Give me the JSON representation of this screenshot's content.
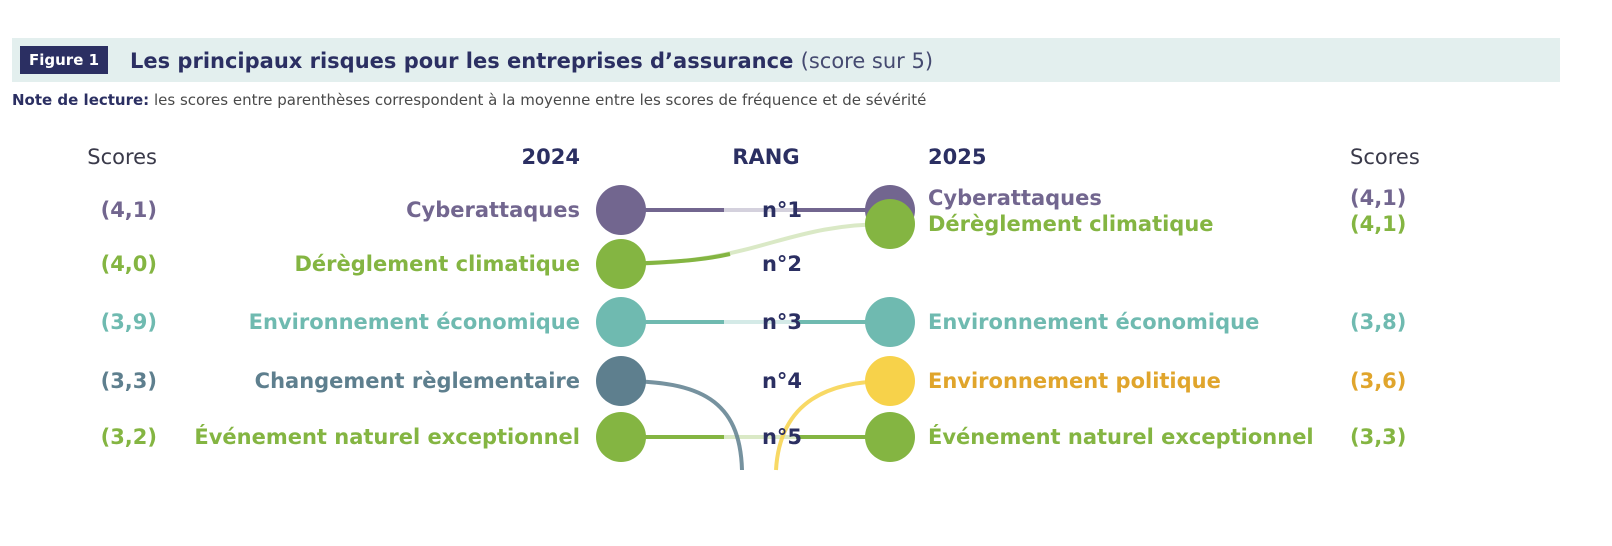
{
  "figure": {
    "badge": "Figure 1",
    "title": "Les principaux risques pour les entreprises d’assurance",
    "subtitle": "(score sur 5)"
  },
  "note": {
    "label": "Note de lecture:",
    "text": "les scores entre parenthèses correspondent à la moyenne entre les scores de fréquence et de sévérité"
  },
  "headers": {
    "scores_left": "Scores",
    "year_left": "2024",
    "rank": "RANG",
    "year_right": "2025",
    "scores_right": "Scores"
  },
  "ranks": [
    "n°1",
    "n°2",
    "n°3",
    "n°4",
    "n°5"
  ],
  "left": [
    {
      "name": "Cyberattaques",
      "score": "(4,1)",
      "color": "#72668f"
    },
    {
      "name": "Dérèglement climatique",
      "score": "(4,0)",
      "color": "#84b542"
    },
    {
      "name": "Environnement économique",
      "score": "(3,9)",
      "color": "#6fbab0"
    },
    {
      "name": "Changement règlementaire",
      "score": "(3,3)",
      "color": "#5e7f8e"
    },
    {
      "name": "Événement naturel exceptionnel",
      "score": "(3,2)",
      "color": "#84b542"
    }
  ],
  "right": [
    {
      "name": "Cyberattaques",
      "score": "(4,1)",
      "color": "#72668f"
    },
    {
      "name": "Dérèglement climatique",
      "score": "(4,1)",
      "color": "#84b542"
    },
    {
      "name": "Environnement économique",
      "score": "(3,8)",
      "color": "#6fbab0"
    },
    {
      "name": "Environnement politique",
      "score": "(3,6)",
      "color": "#e0a52c",
      "dot_color": "#f7d24a"
    },
    {
      "name": "Événement naturel exceptionnel",
      "score": "(3,3)",
      "color": "#84b542"
    }
  ]
}
